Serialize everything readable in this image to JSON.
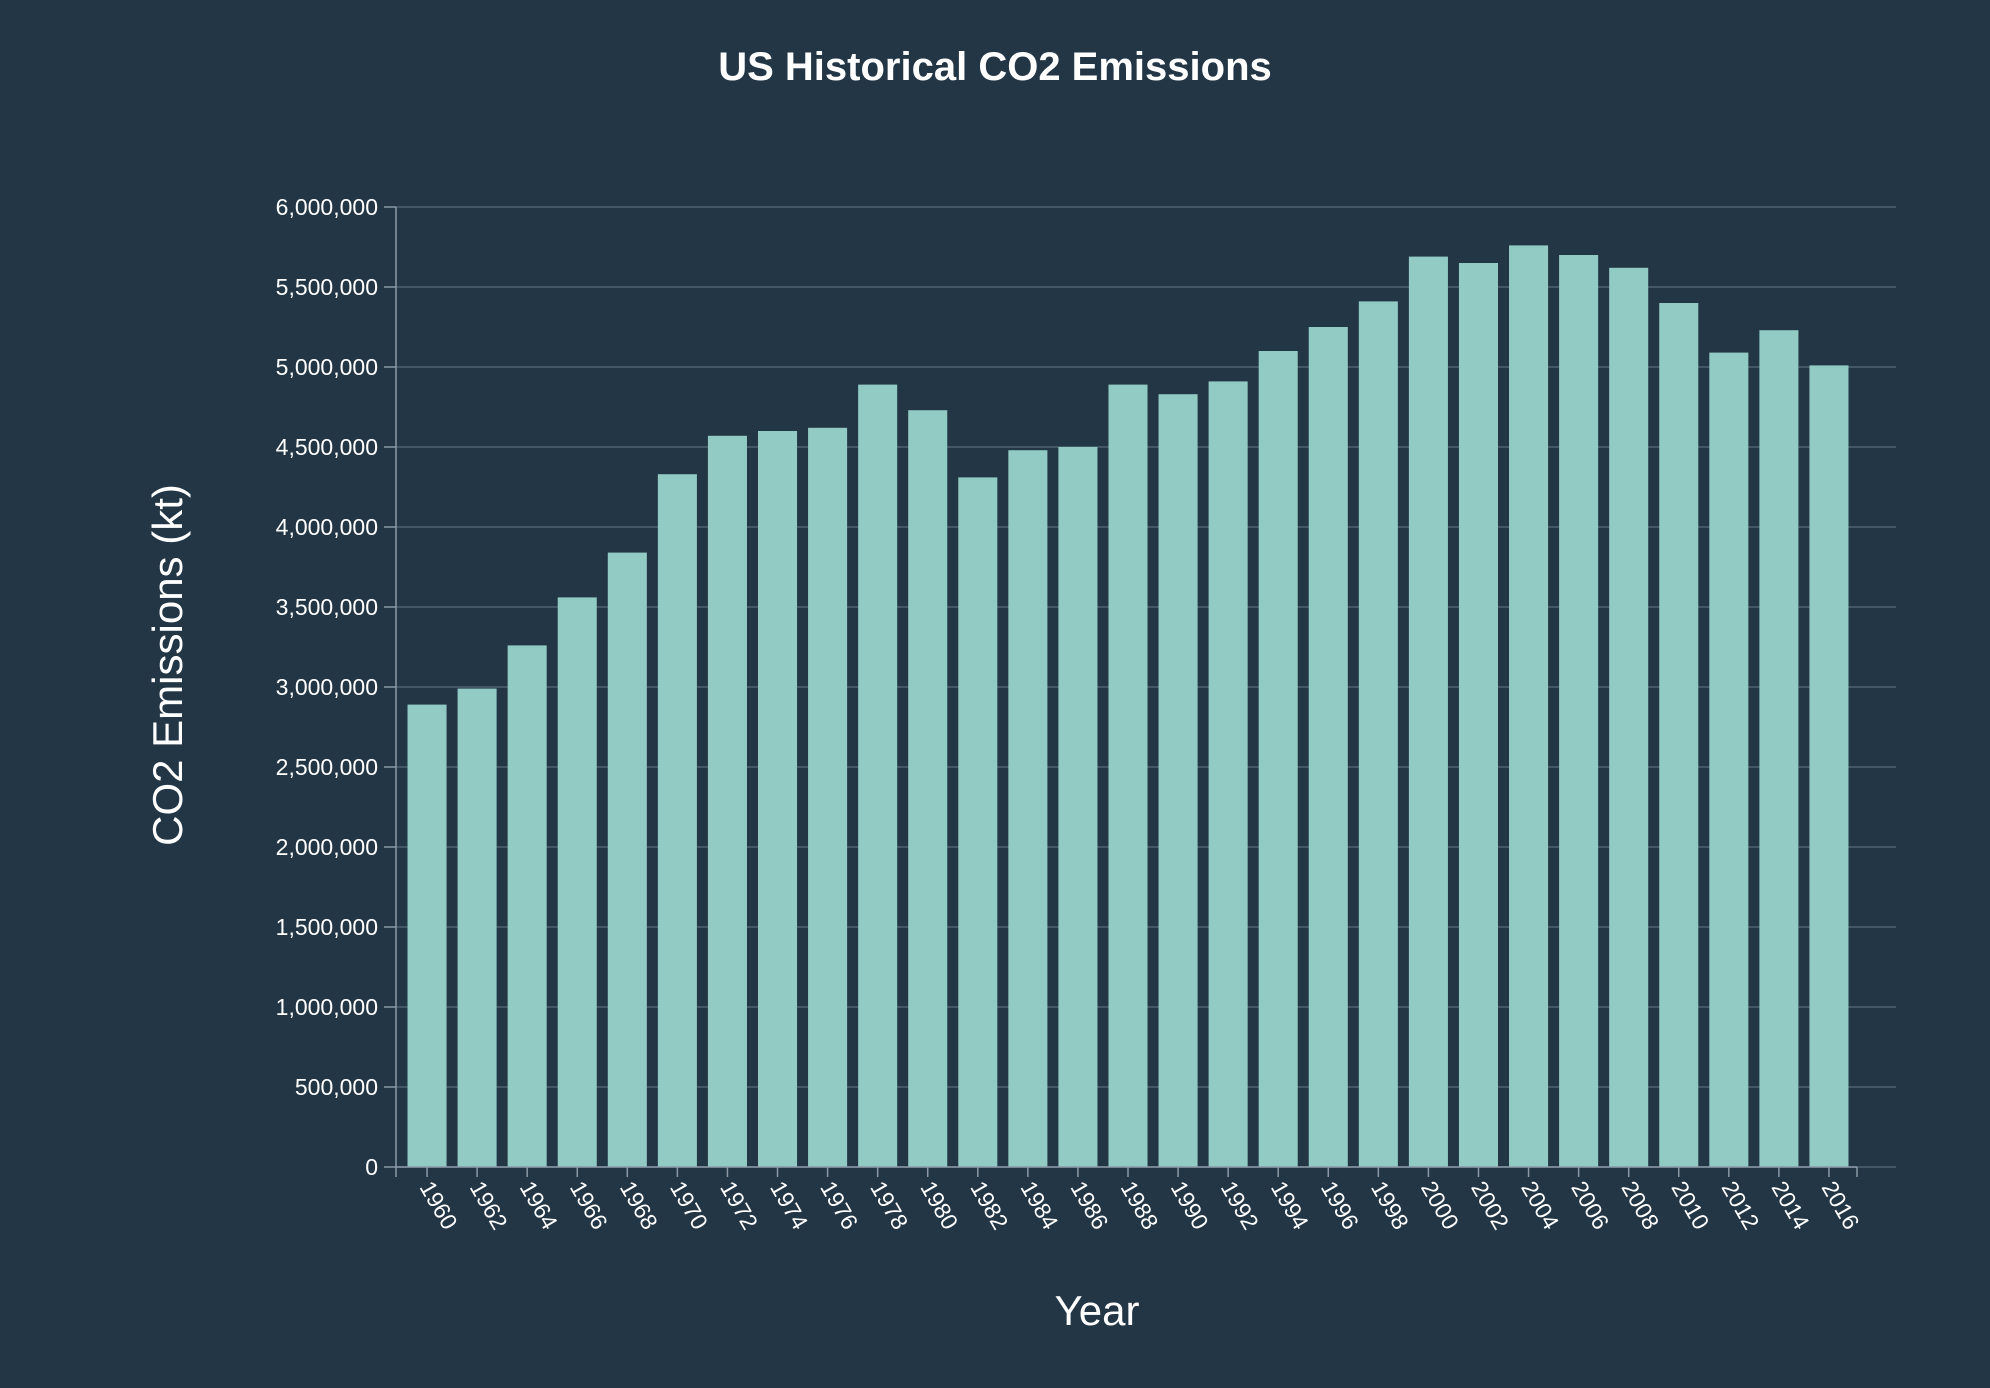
{
  "chart_data": {
    "type": "bar",
    "title": "US Historical CO2 Emissions",
    "xlabel": "Year",
    "ylabel": "CO2 Emissions (kt)",
    "categories": [
      "1960",
      "1962",
      "1964",
      "1966",
      "1968",
      "1970",
      "1972",
      "1974",
      "1976",
      "1978",
      "1980",
      "1982",
      "1984",
      "1986",
      "1988",
      "1990",
      "1992",
      "1994",
      "1996",
      "1998",
      "2000",
      "2002",
      "2004",
      "2006",
      "2008",
      "2010",
      "2012",
      "2014",
      "2016"
    ],
    "values": [
      2890000,
      2990000,
      3260000,
      3560000,
      3840000,
      4330000,
      4570000,
      4600000,
      4620000,
      4890000,
      4730000,
      4310000,
      4480000,
      4500000,
      4890000,
      4830000,
      4910000,
      5100000,
      5250000,
      5410000,
      5690000,
      5650000,
      5760000,
      5700000,
      5620000,
      5400000,
      5090000,
      5230000,
      5010000
    ],
    "ylim": [
      0,
      6000000
    ],
    "yticks": [
      0,
      500000,
      1000000,
      1500000,
      2000000,
      2500000,
      3000000,
      3500000,
      4000000,
      4500000,
      5000000,
      5500000,
      6000000
    ],
    "ytick_labels": [
      "0",
      "500,000",
      "1,000,000",
      "1,500,000",
      "2,000,000",
      "2,500,000",
      "3,000,000",
      "3,500,000",
      "4,000,000",
      "4,500,000",
      "5,000,000",
      "5,500,000",
      "6,000,000"
    ],
    "grid": true,
    "colors": {
      "background": "#233646",
      "bar": "#92cac4",
      "grid": "#4f6272",
      "text": "#ffffff"
    }
  }
}
